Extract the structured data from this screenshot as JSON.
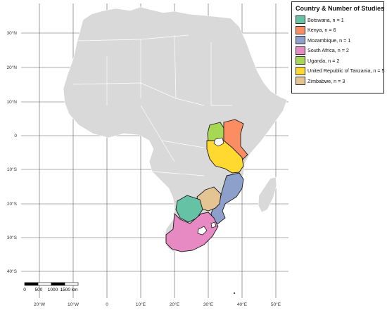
{
  "legend": {
    "title": "Country & Number of Studies",
    "items": [
      {
        "label": "Botswana, n = 1",
        "color": "#66c2a5"
      },
      {
        "label": "Kenya, n = 6",
        "color": "#fc8d62"
      },
      {
        "label": "Mozambique, n = 1",
        "color": "#8da0cb"
      },
      {
        "label": "South Africa, n = 2",
        "color": "#e78ac3"
      },
      {
        "label": "Uganda, n = 2",
        "color": "#a6d854"
      },
      {
        "label": "United Republic of Tanzania, n = 5",
        "color": "#ffd92f"
      },
      {
        "label": "Zimbabwe, n = 3",
        "color": "#e5c494"
      }
    ]
  },
  "lat_labels": [
    "30°N",
    "20°N",
    "10°N",
    "0",
    "10°S",
    "20°S",
    "30°S",
    "40°S"
  ],
  "lon_labels": [
    "20°W",
    "10°W",
    "0",
    "10°E",
    "20°E",
    "30°E",
    "40°E",
    "50°E"
  ],
  "scale_bar": {
    "labels": [
      "0",
      "500",
      "1000",
      "1500 km"
    ]
  },
  "colors": {
    "land": "#d9d9d9",
    "grid": "#5a5a5a",
    "background": "#ffffff"
  }
}
